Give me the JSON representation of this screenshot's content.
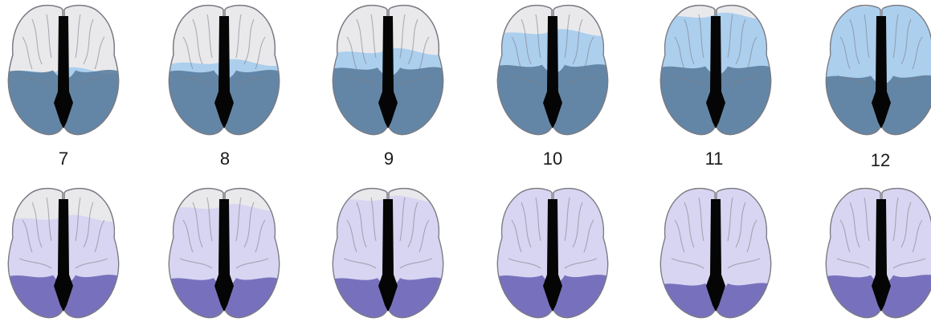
{
  "colors": {
    "cortex_base": "#e9e9ec",
    "cortex_outline": "#7a7a82",
    "fissure": "#050505",
    "top_light": "#a9cdee",
    "top_dark": "#5d809f",
    "bottom_light": "#d6d4f1",
    "bottom_dark": "#6f68b8"
  },
  "top_row": [
    {
      "light_extent": 0.52,
      "dark_extent": 0.52
    },
    {
      "light_extent": 0.58,
      "dark_extent": 0.52
    },
    {
      "light_extent": 0.66,
      "dark_extent": 0.54
    },
    {
      "light_extent": 0.8,
      "dark_extent": 0.56
    },
    {
      "light_extent": 0.92,
      "dark_extent": 0.55
    },
    {
      "light_extent": 1.0,
      "dark_extent": 0.48
    }
  ],
  "labels": [
    "7",
    "8",
    "9",
    "10",
    "11",
    "12"
  ],
  "bottom_row": [
    {
      "light_extent": 0.78,
      "dark_extent": 0.36
    },
    {
      "light_extent": 0.86,
      "dark_extent": 0.34
    },
    {
      "light_extent": 0.92,
      "dark_extent": 0.34
    },
    {
      "light_extent": 1.0,
      "dark_extent": 0.36
    },
    {
      "light_extent": 1.0,
      "dark_extent": 0.3
    },
    {
      "light_extent": 1.0,
      "dark_extent": 0.36
    }
  ]
}
